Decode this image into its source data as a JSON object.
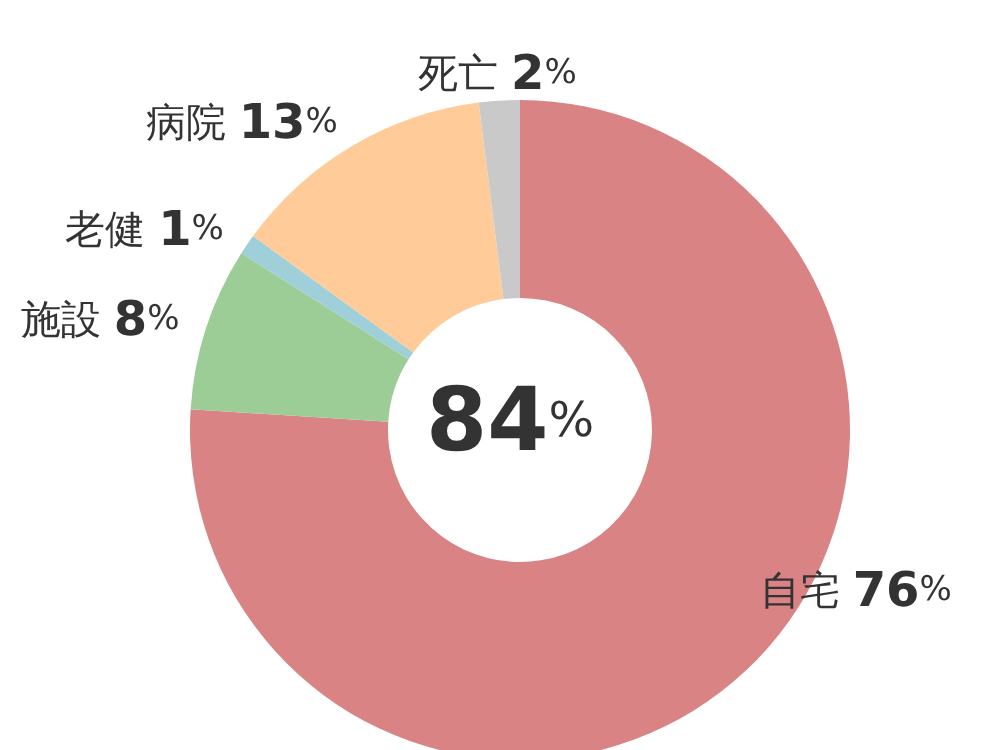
{
  "chart_data": {
    "type": "donut",
    "categories": [
      "自宅",
      "施設",
      "老健",
      "病院",
      "死亡"
    ],
    "values": [
      76,
      8,
      1,
      13,
      2
    ],
    "colors": [
      "#d98384",
      "#9dcd97",
      "#9fcfd8",
      "#ffcc99",
      "#c9c9c9"
    ],
    "value_labels": [
      "76%",
      "8%",
      "1%",
      "13%",
      "2%"
    ],
    "annotations": [
      "84%"
    ]
  }
}
